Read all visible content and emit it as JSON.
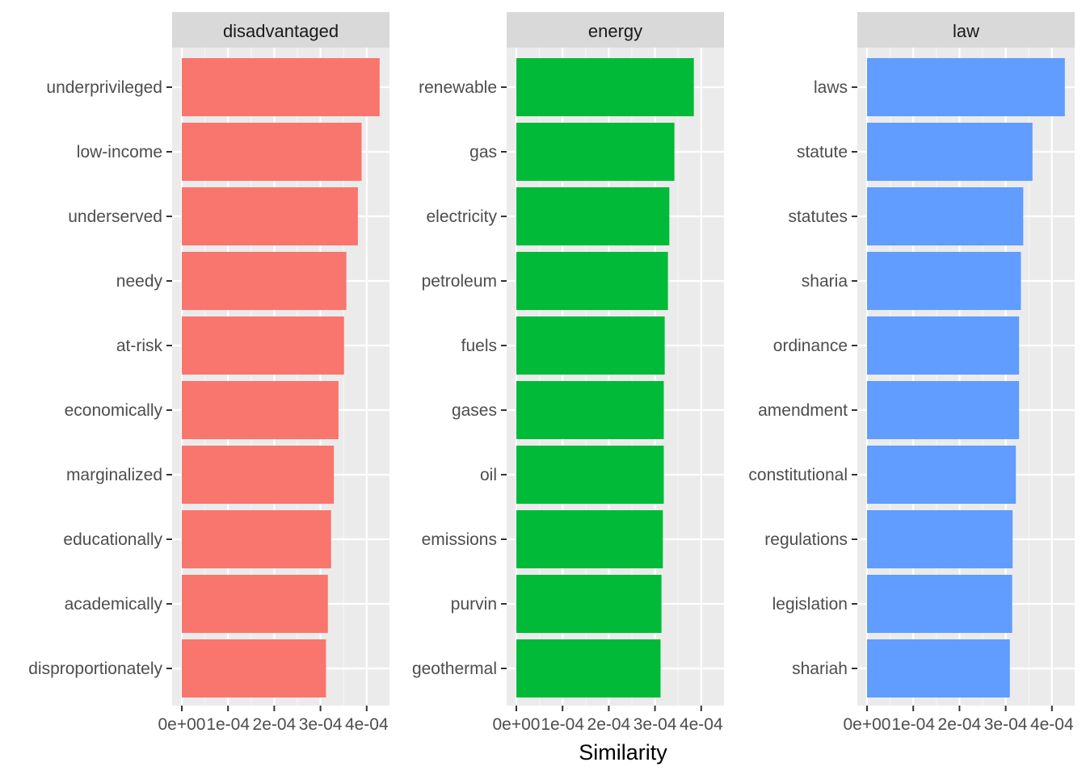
{
  "chart_data": {
    "type": "bar",
    "orientation": "horizontal",
    "xlabel": "Similarity",
    "ylabel": "",
    "xlim": [
      0,
      0.00048
    ],
    "x_ticks": [
      0,
      0.0001,
      0.0002,
      0.0003,
      0.0004
    ],
    "x_tick_labels": [
      "0e+00",
      "1e-04",
      "2e-04",
      "3e-04",
      "4e-04"
    ],
    "grid": true,
    "legend": "none",
    "facets": [
      {
        "name": "disadvantaged",
        "color": "#F8766D",
        "categories": [
          "underprivileged",
          "low-income",
          "underserved",
          "needy",
          "at-risk",
          "economically",
          "marginalized",
          "educationally",
          "academically",
          "disproportionately"
        ],
        "values": [
          0.000428,
          0.000389,
          0.000381,
          0.000356,
          0.000351,
          0.000339,
          0.000329,
          0.000323,
          0.000316,
          0.000312
        ]
      },
      {
        "name": "energy",
        "color": "#00BA38",
        "categories": [
          "renewable",
          "gas",
          "electricity",
          "petroleum",
          "fuels",
          "gases",
          "oil",
          "emissions",
          "purvin",
          "geothermal"
        ],
        "values": [
          0.000384,
          0.000342,
          0.000331,
          0.000328,
          0.000321,
          0.000319,
          0.000319,
          0.000317,
          0.000314,
          0.000312
        ]
      },
      {
        "name": "law",
        "color": "#619CFF",
        "categories": [
          "laws",
          "statute",
          "statutes",
          "sharia",
          "ordinance",
          "amendment",
          "constitutional",
          "regulations",
          "legislation",
          "shariah"
        ],
        "values": [
          0.000428,
          0.000358,
          0.000338,
          0.000333,
          0.000329,
          0.000329,
          0.000322,
          0.000315,
          0.000314,
          0.000309
        ]
      }
    ]
  }
}
